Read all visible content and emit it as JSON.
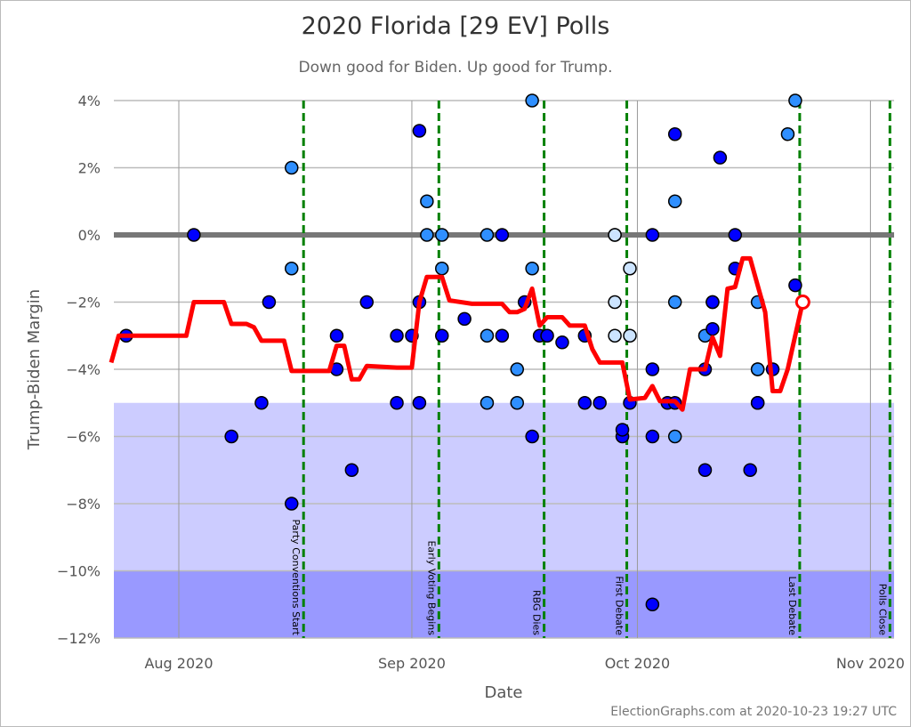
{
  "title": "2020 Florida [29 EV] Polls",
  "subtitle": "Down good for Biden. Up good for Trump.",
  "footer": "ElectionGraphs.com at 2020-10-23 19:27 UTC",
  "colors": {
    "poll_recent": "#0000ff",
    "poll_mid": "#2f8fff",
    "poll_old": "#cce4ff",
    "average": "#ff0000",
    "event_line": "#008000",
    "band_light": "#ccccff",
    "band_dark": "#9999ff",
    "zero_line": "#777777"
  },
  "chart_data": {
    "type": "scatter",
    "title": "2020 Florida [29 EV] Polls",
    "subtitle": "Down good for Biden. Up good for Trump.",
    "xlabel": "Date",
    "ylabel": "Trump-Biden Margin",
    "xlim": [
      "2020-07-23",
      "2020-11-04"
    ],
    "ylim": [
      -12,
      4
    ],
    "grid": true,
    "x_ticks": [
      {
        "date": "2020-08-01",
        "label": "Aug 2020"
      },
      {
        "date": "2020-09-01",
        "label": "Sep 2020"
      },
      {
        "date": "2020-10-01",
        "label": "Oct 2020"
      },
      {
        "date": "2020-11-01",
        "label": "Nov 2020"
      }
    ],
    "y_ticks": [
      {
        "value": 4,
        "label": "4%"
      },
      {
        "value": 2,
        "label": "2%"
      },
      {
        "value": 0,
        "label": "0%"
      },
      {
        "value": -2,
        "label": "−2%"
      },
      {
        "value": -4,
        "label": "−4%"
      },
      {
        "value": -6,
        "label": "−6%"
      },
      {
        "value": -8,
        "label": "−8%"
      },
      {
        "value": -10,
        "label": "−10%"
      },
      {
        "value": -12,
        "label": "−12%"
      }
    ],
    "bands": [
      {
        "from": -10,
        "to": -5,
        "color": "#ccccff"
      },
      {
        "from": -12,
        "to": -10,
        "color": "#9999ff"
      }
    ],
    "events": [
      {
        "date": "2020-08-17",
        "label": "Party Conventions Start"
      },
      {
        "date": "2020-09-04",
        "label": "Early Voting Begins"
      },
      {
        "date": "2020-09-18",
        "label": "RBG Dies"
      },
      {
        "date": "2020-09-29",
        "label": "First Debate"
      },
      {
        "date": "2020-10-22",
        "label": "Last Debate"
      },
      {
        "date": "2020-11-03",
        "label": "Polls Close"
      }
    ],
    "polls": [
      [
        "2020-07-25",
        -3,
        "recent"
      ],
      [
        "2020-08-03",
        0,
        "recent"
      ],
      [
        "2020-08-08",
        -6,
        "recent"
      ],
      [
        "2020-08-12",
        -5,
        "recent"
      ],
      [
        "2020-08-13",
        -2,
        "recent"
      ],
      [
        "2020-08-16",
        2,
        "mid"
      ],
      [
        "2020-08-16",
        -1,
        "mid"
      ],
      [
        "2020-08-16",
        -8,
        "recent"
      ],
      [
        "2020-08-22",
        -4,
        "recent"
      ],
      [
        "2020-08-22",
        -3,
        "recent"
      ],
      [
        "2020-08-24",
        -7,
        "recent"
      ],
      [
        "2020-08-26",
        -2,
        "recent"
      ],
      [
        "2020-08-30",
        -5,
        "recent"
      ],
      [
        "2020-08-30",
        -3,
        "recent"
      ],
      [
        "2020-09-01",
        -3,
        "recent"
      ],
      [
        "2020-09-02",
        3.1,
        "recent"
      ],
      [
        "2020-09-02",
        -2,
        "recent"
      ],
      [
        "2020-09-02",
        -5,
        "recent"
      ],
      [
        "2020-09-03",
        1,
        "mid"
      ],
      [
        "2020-09-03",
        0,
        "mid"
      ],
      [
        "2020-09-05",
        -3,
        "recent"
      ],
      [
        "2020-09-05",
        0,
        "mid"
      ],
      [
        "2020-09-05",
        -1,
        "mid"
      ],
      [
        "2020-09-08",
        -2.5,
        "recent"
      ],
      [
        "2020-09-11",
        0,
        "mid"
      ],
      [
        "2020-09-11",
        -3,
        "mid"
      ],
      [
        "2020-09-11",
        -5,
        "mid"
      ],
      [
        "2020-09-13",
        -3,
        "recent"
      ],
      [
        "2020-09-13",
        0,
        "recent"
      ],
      [
        "2020-09-15",
        -4,
        "mid"
      ],
      [
        "2020-09-15",
        -5,
        "mid"
      ],
      [
        "2020-09-16",
        -2,
        "recent"
      ],
      [
        "2020-09-17",
        4,
        "mid"
      ],
      [
        "2020-09-17",
        -1,
        "mid"
      ],
      [
        "2020-09-17",
        -6,
        "recent"
      ],
      [
        "2020-09-18",
        -3,
        "recent"
      ],
      [
        "2020-09-19",
        -3,
        "recent"
      ],
      [
        "2020-09-21",
        -3.2,
        "recent"
      ],
      [
        "2020-09-24",
        -5,
        "recent"
      ],
      [
        "2020-09-24",
        -3,
        "recent"
      ],
      [
        "2020-09-26",
        -5,
        "recent"
      ],
      [
        "2020-09-28",
        0,
        "old"
      ],
      [
        "2020-09-28",
        0,
        "old"
      ],
      [
        "2020-09-28",
        -2,
        "old"
      ],
      [
        "2020-09-28",
        -3,
        "old"
      ],
      [
        "2020-09-29",
        -6,
        "recent"
      ],
      [
        "2020-09-29",
        -5.8,
        "recent"
      ],
      [
        "2020-09-30",
        -1,
        "old"
      ],
      [
        "2020-09-30",
        -3,
        "old"
      ],
      [
        "2020-09-30",
        -5,
        "recent"
      ],
      [
        "2020-10-03",
        -11,
        "recent"
      ],
      [
        "2020-10-03",
        0,
        "recent"
      ],
      [
        "2020-10-03",
        -6,
        "recent"
      ],
      [
        "2020-10-03",
        -4,
        "recent"
      ],
      [
        "2020-10-05",
        -5,
        "recent"
      ],
      [
        "2020-10-06",
        1,
        "mid"
      ],
      [
        "2020-10-06",
        -2,
        "mid"
      ],
      [
        "2020-10-06",
        -6,
        "mid"
      ],
      [
        "2020-10-06",
        3,
        "recent"
      ],
      [
        "2020-10-06",
        -5,
        "recent"
      ],
      [
        "2020-10-10",
        -7,
        "recent"
      ],
      [
        "2020-10-10",
        -4,
        "recent"
      ],
      [
        "2020-10-10",
        -3,
        "mid"
      ],
      [
        "2020-10-11",
        -2,
        "mid"
      ],
      [
        "2020-10-11",
        -2.8,
        "recent"
      ],
      [
        "2020-10-11",
        -2,
        "recent"
      ],
      [
        "2020-10-12",
        2.3,
        "recent"
      ],
      [
        "2020-10-14",
        0,
        "recent"
      ],
      [
        "2020-10-14",
        -1,
        "recent"
      ],
      [
        "2020-10-16",
        -7,
        "recent"
      ],
      [
        "2020-10-17",
        -4,
        "mid"
      ],
      [
        "2020-10-17",
        -2,
        "mid"
      ],
      [
        "2020-10-17",
        -5,
        "mid"
      ],
      [
        "2020-10-17",
        -5,
        "recent"
      ],
      [
        "2020-10-17",
        -4,
        "mid"
      ],
      [
        "2020-10-19",
        -4,
        "recent"
      ],
      [
        "2020-10-21",
        3,
        "mid"
      ],
      [
        "2020-10-22",
        -1.5,
        "recent"
      ],
      [
        "2020-10-22",
        4,
        "mid"
      ]
    ],
    "average": [
      [
        "2020-07-23",
        -3.8
      ],
      [
        "2020-07-24",
        -3.0
      ],
      [
        "2020-08-02",
        -3.0
      ],
      [
        "2020-08-03",
        -2.0
      ],
      [
        "2020-08-07",
        -2.0
      ],
      [
        "2020-08-08",
        -2.65
      ],
      [
        "2020-08-10",
        -2.65
      ],
      [
        "2020-08-11",
        -2.75
      ],
      [
        "2020-08-12",
        -3.15
      ],
      [
        "2020-08-15",
        -3.15
      ],
      [
        "2020-08-16",
        -4.05
      ],
      [
        "2020-08-21",
        -4.05
      ],
      [
        "2020-08-22",
        -3.3
      ],
      [
        "2020-08-23",
        -3.3
      ],
      [
        "2020-08-24",
        -4.3
      ],
      [
        "2020-08-25",
        -4.3
      ],
      [
        "2020-08-26",
        -3.9
      ],
      [
        "2020-08-30",
        -3.95
      ],
      [
        "2020-09-01",
        -3.95
      ],
      [
        "2020-09-02",
        -2.0
      ],
      [
        "2020-09-03",
        -1.25
      ],
      [
        "2020-09-05",
        -1.25
      ],
      [
        "2020-09-06",
        -1.95
      ],
      [
        "2020-09-09",
        -2.05
      ],
      [
        "2020-09-13",
        -2.05
      ],
      [
        "2020-09-14",
        -2.3
      ],
      [
        "2020-09-15",
        -2.3
      ],
      [
        "2020-09-16",
        -2.2
      ],
      [
        "2020-09-17",
        -1.6
      ],
      [
        "2020-09-18",
        -2.7
      ],
      [
        "2020-09-19",
        -2.45
      ],
      [
        "2020-09-21",
        -2.45
      ],
      [
        "2020-09-22",
        -2.7
      ],
      [
        "2020-09-24",
        -2.7
      ],
      [
        "2020-09-25",
        -3.4
      ],
      [
        "2020-09-26",
        -3.8
      ],
      [
        "2020-09-29",
        -3.8
      ],
      [
        "2020-09-30",
        -4.9
      ],
      [
        "2020-10-02",
        -4.85
      ],
      [
        "2020-10-03",
        -4.5
      ],
      [
        "2020-10-04",
        -4.95
      ],
      [
        "2020-10-06",
        -4.95
      ],
      [
        "2020-10-07",
        -5.2
      ],
      [
        "2020-10-08",
        -4.0
      ],
      [
        "2020-10-10",
        -4.0
      ],
      [
        "2020-10-11",
        -3.05
      ],
      [
        "2020-10-12",
        -3.6
      ],
      [
        "2020-10-13",
        -1.6
      ],
      [
        "2020-10-14",
        -1.55
      ],
      [
        "2020-10-15",
        -0.7
      ],
      [
        "2020-10-16",
        -0.7
      ],
      [
        "2020-10-17",
        -1.5
      ],
      [
        "2020-10-18",
        -2.3
      ],
      [
        "2020-10-19",
        -4.65
      ],
      [
        "2020-10-20",
        -4.65
      ],
      [
        "2020-10-21",
        -4.0
      ],
      [
        "2020-10-23",
        -2.0
      ]
    ]
  }
}
